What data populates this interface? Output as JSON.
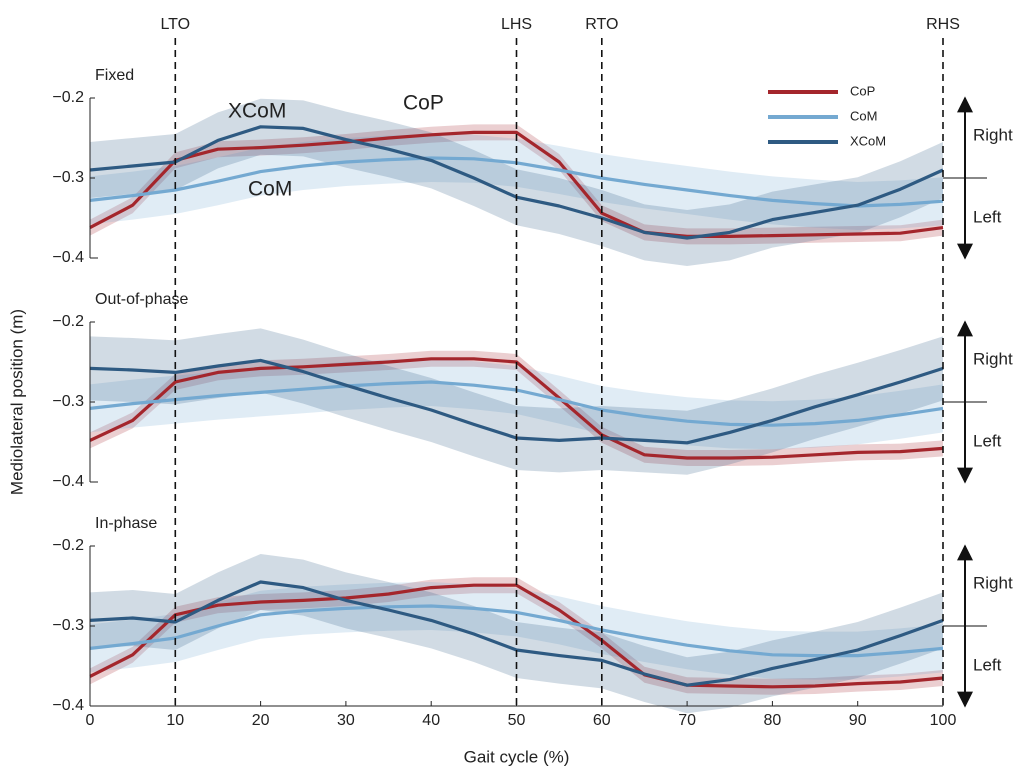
{
  "ylabel": "Mediolateral position (m)",
  "events": [
    {
      "label": "LTO",
      "x": 10
    },
    {
      "label": "LHS",
      "x": 50
    },
    {
      "label": "RTO",
      "x": 60
    },
    {
      "label": "RHS",
      "x": 100
    }
  ],
  "chart_data": [
    {
      "type": "line",
      "title": "Fixed",
      "x": [
        0,
        5,
        10,
        15,
        20,
        25,
        30,
        35,
        40,
        45,
        50,
        55,
        60,
        65,
        70,
        75,
        80,
        85,
        90,
        95,
        100
      ],
      "xlim": [
        0,
        100
      ],
      "ylim": [
        -0.4,
        -0.2
      ],
      "yticks": [
        {
          "value": -0.2,
          "label": "−0.2"
        },
        {
          "value": -0.3,
          "label": "−0.3"
        },
        {
          "value": -0.4,
          "label": "−0.4"
        }
      ],
      "series": [
        {
          "name": "CoP",
          "color": "#a4262c",
          "sd": 0.01,
          "values": [
            -0.362,
            -0.334,
            -0.278,
            -0.264,
            -0.262,
            -0.259,
            -0.255,
            -0.25,
            -0.246,
            -0.243,
            -0.243,
            -0.28,
            -0.344,
            -0.368,
            -0.373,
            -0.373,
            -0.372,
            -0.371,
            -0.37,
            -0.369,
            -0.362
          ]
        },
        {
          "name": "CoM",
          "color": "#74a9d1",
          "sd": 0.03,
          "values": [
            -0.328,
            -0.322,
            -0.315,
            -0.304,
            -0.292,
            -0.285,
            -0.28,
            -0.277,
            -0.275,
            -0.276,
            -0.281,
            -0.29,
            -0.3,
            -0.308,
            -0.315,
            -0.322,
            -0.328,
            -0.332,
            -0.335,
            -0.333,
            -0.329
          ]
        },
        {
          "name": "XCoM",
          "color": "#2e5a82",
          "sd": 0.035,
          "values": [
            -0.29,
            -0.285,
            -0.28,
            -0.253,
            -0.236,
            -0.238,
            -0.252,
            -0.264,
            -0.278,
            -0.3,
            -0.324,
            -0.335,
            -0.35,
            -0.368,
            -0.375,
            -0.368,
            -0.352,
            -0.343,
            -0.334,
            -0.314,
            -0.29
          ]
        }
      ],
      "legend": "upper right",
      "annotations": [
        "XCoM",
        "CoP",
        "CoM"
      ],
      "direction_labels": [
        "Right",
        "Left"
      ]
    },
    {
      "type": "line",
      "title": "Out-of-phase",
      "x": [
        0,
        5,
        10,
        15,
        20,
        25,
        30,
        35,
        40,
        45,
        50,
        55,
        60,
        65,
        70,
        75,
        80,
        85,
        90,
        95,
        100
      ],
      "xlim": [
        0,
        100
      ],
      "ylim": [
        -0.4,
        -0.2
      ],
      "yticks": [
        {
          "value": -0.2,
          "label": "−0.2"
        },
        {
          "value": -0.3,
          "label": "−0.3"
        },
        {
          "value": -0.4,
          "label": "−0.4"
        }
      ],
      "series": [
        {
          "name": "CoP",
          "color": "#a4262c",
          "sd": 0.01,
          "values": [
            -0.348,
            -0.323,
            -0.275,
            -0.263,
            -0.258,
            -0.256,
            -0.253,
            -0.25,
            -0.246,
            -0.246,
            -0.25,
            -0.295,
            -0.341,
            -0.366,
            -0.37,
            -0.37,
            -0.369,
            -0.366,
            -0.363,
            -0.362,
            -0.358
          ]
        },
        {
          "name": "CoM",
          "color": "#74a9d1",
          "sd": 0.03,
          "values": [
            -0.308,
            -0.302,
            -0.297,
            -0.292,
            -0.288,
            -0.284,
            -0.28,
            -0.277,
            -0.275,
            -0.279,
            -0.285,
            -0.297,
            -0.31,
            -0.318,
            -0.324,
            -0.328,
            -0.329,
            -0.327,
            -0.323,
            -0.316,
            -0.308
          ]
        },
        {
          "name": "XCoM",
          "color": "#2e5a82",
          "sd": 0.04,
          "values": [
            -0.258,
            -0.26,
            -0.263,
            -0.255,
            -0.248,
            -0.262,
            -0.279,
            -0.295,
            -0.31,
            -0.328,
            -0.345,
            -0.348,
            -0.345,
            -0.348,
            -0.351,
            -0.338,
            -0.323,
            -0.306,
            -0.291,
            -0.275,
            -0.258
          ]
        }
      ],
      "direction_labels": [
        "Right",
        "Left"
      ]
    },
    {
      "type": "line",
      "title": "In-phase",
      "xlabel": "Gait cycle (%)",
      "x": [
        0,
        5,
        10,
        15,
        20,
        25,
        30,
        35,
        40,
        45,
        50,
        55,
        60,
        65,
        70,
        75,
        80,
        85,
        90,
        95,
        100
      ],
      "xlim": [
        0,
        100
      ],
      "xticks": [
        0,
        10,
        20,
        30,
        40,
        50,
        60,
        70,
        80,
        90,
        100
      ],
      "ylim": [
        -0.4,
        -0.2
      ],
      "yticks": [
        {
          "value": -0.2,
          "label": "−0.2"
        },
        {
          "value": -0.3,
          "label": "−0.3"
        },
        {
          "value": -0.4,
          "label": "−0.4"
        }
      ],
      "series": [
        {
          "name": "CoP",
          "color": "#a4262c",
          "sd": 0.01,
          "values": [
            -0.363,
            -0.336,
            -0.286,
            -0.274,
            -0.27,
            -0.268,
            -0.265,
            -0.26,
            -0.252,
            -0.249,
            -0.249,
            -0.28,
            -0.318,
            -0.361,
            -0.374,
            -0.375,
            -0.376,
            -0.375,
            -0.372,
            -0.37,
            -0.365
          ]
        },
        {
          "name": "CoM",
          "color": "#74a9d1",
          "sd": 0.03,
          "values": [
            -0.328,
            -0.322,
            -0.315,
            -0.3,
            -0.286,
            -0.281,
            -0.278,
            -0.276,
            -0.275,
            -0.278,
            -0.283,
            -0.293,
            -0.305,
            -0.315,
            -0.324,
            -0.331,
            -0.336,
            -0.337,
            -0.337,
            -0.333,
            -0.328
          ]
        },
        {
          "name": "XCoM",
          "color": "#2e5a82",
          "sd": 0.035,
          "values": [
            -0.293,
            -0.29,
            -0.295,
            -0.268,
            -0.245,
            -0.252,
            -0.268,
            -0.28,
            -0.293,
            -0.31,
            -0.33,
            -0.337,
            -0.343,
            -0.36,
            -0.374,
            -0.367,
            -0.353,
            -0.342,
            -0.33,
            -0.312,
            -0.293
          ]
        }
      ],
      "direction_labels": [
        "Right",
        "Left"
      ]
    }
  ]
}
